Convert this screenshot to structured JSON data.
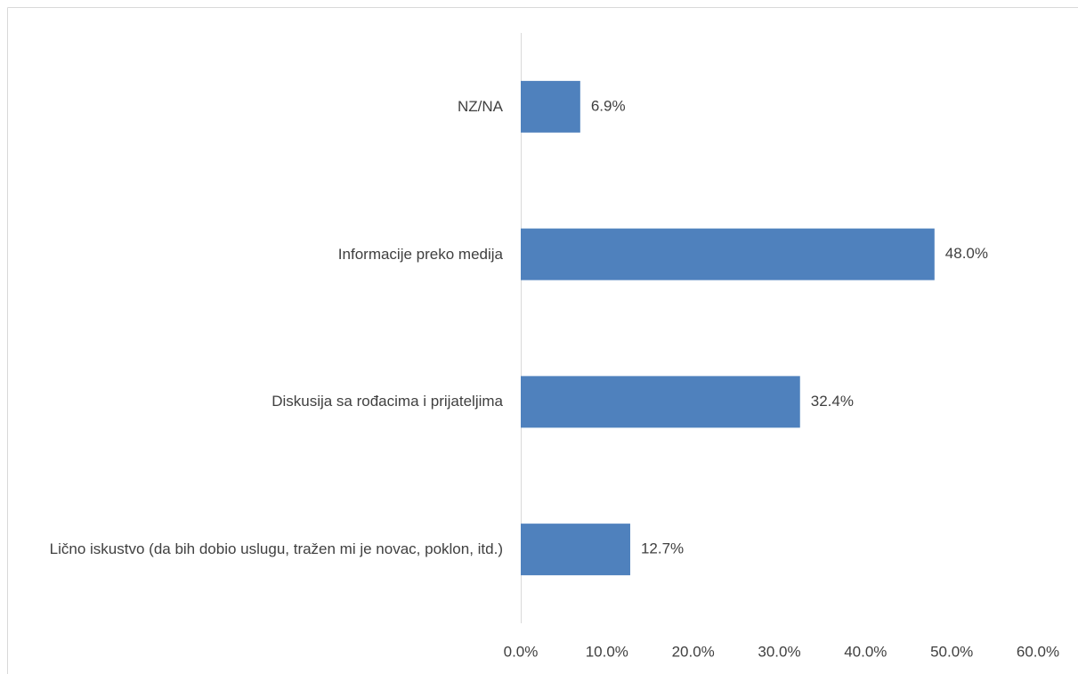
{
  "chart_data": {
    "type": "bar",
    "orientation": "horizontal",
    "categories": [
      "NZ/NA",
      "Informacije preko medija",
      "Diskusija sa rođacima i prijateljima",
      "Lično iskustvo (da bih dobio uslugu, tražen mi je novac, poklon, itd.)"
    ],
    "values": [
      6.9,
      48.0,
      32.4,
      12.7
    ],
    "value_labels": [
      "6.9%",
      "48.0%",
      "32.4%",
      "12.7%"
    ],
    "color": "#4f81bd",
    "xlim": [
      0,
      60
    ],
    "xticks": [
      {
        "value": 0,
        "label": "0.0%"
      },
      {
        "value": 10,
        "label": "10.0%"
      },
      {
        "value": 20,
        "label": "20.0%"
      },
      {
        "value": 30,
        "label": "30.0%"
      },
      {
        "value": 40,
        "label": "40.0%"
      },
      {
        "value": 50,
        "label": "50.0%"
      },
      {
        "value": 60,
        "label": "60.0%"
      }
    ],
    "grid": false
  }
}
